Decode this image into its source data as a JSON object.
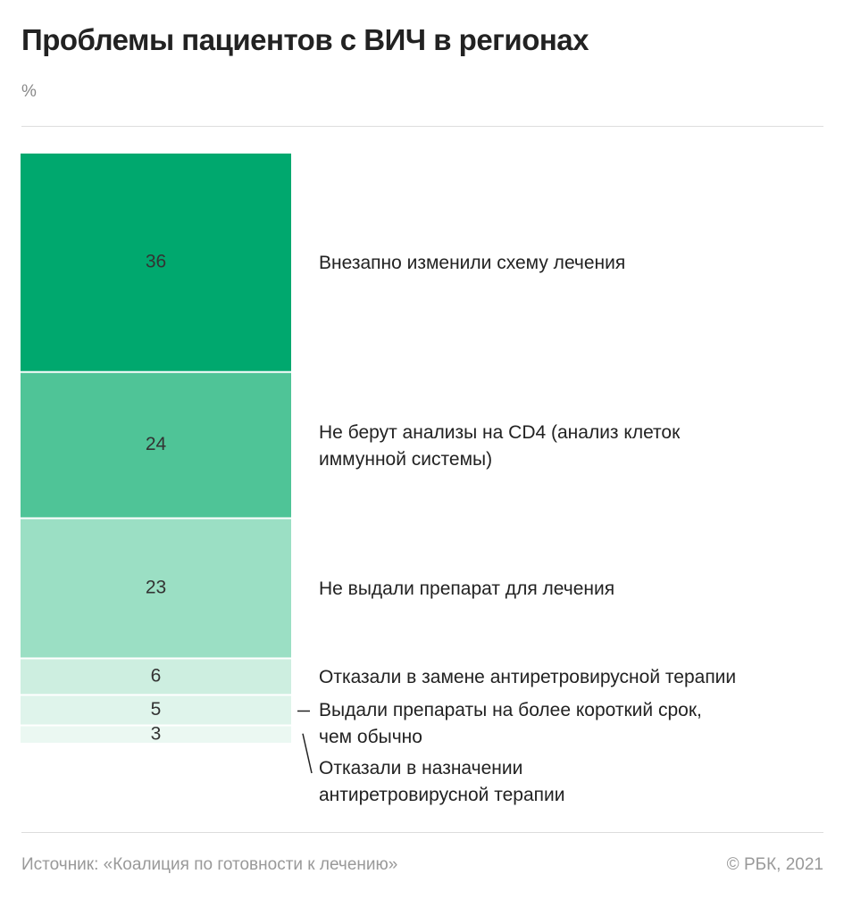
{
  "chart_data": {
    "type": "stacked-bar",
    "title": "Проблемы пациентов с ВИЧ в регионах",
    "unit": "%",
    "categories": [
      "Внезапно изменили схему лечения",
      "Не берут анализы на CD4 (анализ клеток иммунной системы)",
      "Не выдали препарат для лечения",
      "Отказали в замене антиретровирусной терапии",
      "Выдали препараты на более короткий срок, чем обычно",
      "Отказали в назначении антиретровирусной терапии"
    ],
    "values": [
      36,
      24,
      23,
      6,
      5,
      3
    ],
    "colors": [
      "#00a86e",
      "#4fc497",
      "#9bdfc4",
      "#cdeee0",
      "#dff4eb",
      "#ebf8f2"
    ],
    "source": "Источник: «Коалиция по готовности к лечению»",
    "credit": "© РБК, 2021"
  }
}
